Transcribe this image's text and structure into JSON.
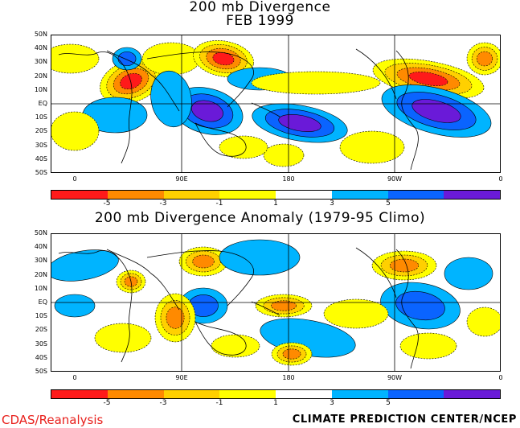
{
  "maps": [
    {
      "title_line1": "200 mb Divergence",
      "title_line2": "FEB 1999"
    },
    {
      "title_line1": "200 mb Divergence Anomaly (1979-95 Climo)",
      "title_line2": ""
    }
  ],
  "lat_labels": [
    "50N",
    "40N",
    "30N",
    "20N",
    "10N",
    "EQ",
    "10S",
    "20S",
    "30S",
    "40S",
    "50S"
  ],
  "lon_labels": [
    "0",
    "90E",
    "180",
    "90W",
    "0"
  ],
  "colorbar": {
    "colors": [
      "#ff1a1a",
      "#ff8a00",
      "#ffd000",
      "#ffff00",
      "#ffffff",
      "#00b4ff",
      "#0a64ff",
      "#6a1ad8"
    ],
    "ticks": [
      "-5",
      "-3",
      "-1",
      "1",
      "3",
      "5"
    ]
  },
  "footer": {
    "left": "CDAS/Reanalysis",
    "right": "CLIMATE PREDICTION CENTER/NCEP"
  },
  "colors": {
    "footer_left": "#e8201c",
    "land_outline": "#000000"
  }
}
